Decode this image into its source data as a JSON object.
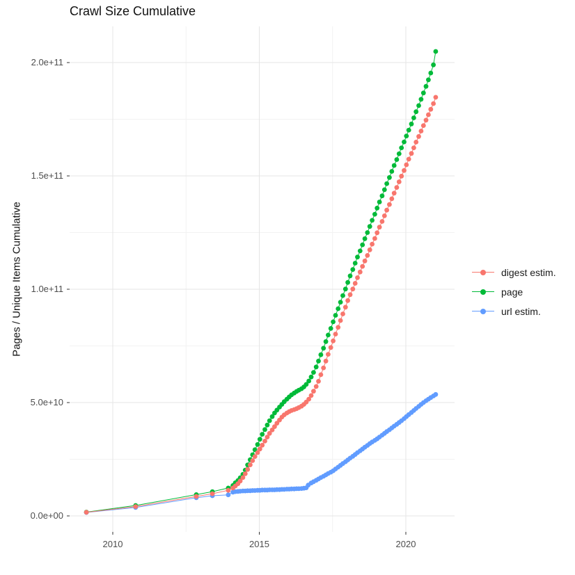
{
  "chart_data": {
    "type": "scatter",
    "title": "Crawl Size Cumulative",
    "xlabel": "",
    "ylabel": "Pages / Unique Items Cumulative",
    "unit_note": "values are cumulative counts; stored numbers are in billions (1e9)",
    "legend_position": "right",
    "grid": true,
    "x_axis": {
      "ticks": [
        {
          "label": "2010",
          "year": 2010
        },
        {
          "label": "2015",
          "year": 2015
        },
        {
          "label": "2020",
          "year": 2020
        }
      ],
      "minor_years": [
        2012.5,
        2017.5
      ],
      "range_years": [
        2008.53,
        2021.66
      ]
    },
    "y_axis": {
      "ticks": [
        {
          "label": "0.0e+00",
          "value": 0
        },
        {
          "label": "5.0e+10",
          "value": 50
        },
        {
          "label": "1.0e+11",
          "value": 100
        },
        {
          "label": "1.5e+11",
          "value": 150
        },
        {
          "label": "2.0e+11",
          "value": 200
        }
      ],
      "minor_values": [
        25,
        75,
        125,
        175
      ],
      "range_billions": [
        -7,
        216
      ]
    },
    "series": [
      {
        "name": "digest estim.",
        "color": "#F8766D",
        "points": [
          [
            2009.1,
            1.6
          ],
          [
            2010.78,
            4.1
          ],
          [
            2012.85,
            8.6
          ],
          [
            2013.4,
            9.8
          ],
          [
            2013.94,
            11.3
          ],
          [
            2014.1,
            12.3
          ],
          [
            2014.18,
            13.2
          ],
          [
            2014.27,
            14.2
          ],
          [
            2014.35,
            15.4
          ],
          [
            2014.44,
            16.9
          ],
          [
            2014.52,
            18.6
          ],
          [
            2014.6,
            20.5
          ],
          [
            2014.69,
            22.5
          ],
          [
            2014.77,
            24.4
          ],
          [
            2014.85,
            26.2
          ],
          [
            2014.94,
            27.9
          ],
          [
            2015.02,
            29.5
          ],
          [
            2015.1,
            31.2
          ],
          [
            2015.19,
            33.0
          ],
          [
            2015.27,
            34.8
          ],
          [
            2015.35,
            36.4
          ],
          [
            2015.44,
            37.9
          ],
          [
            2015.52,
            39.4
          ],
          [
            2015.6,
            40.9
          ],
          [
            2015.69,
            42.3
          ],
          [
            2015.77,
            43.6
          ],
          [
            2015.85,
            44.6
          ],
          [
            2015.94,
            45.4
          ],
          [
            2016.02,
            46.0
          ],
          [
            2016.1,
            46.5
          ],
          [
            2016.19,
            46.9
          ],
          [
            2016.27,
            47.3
          ],
          [
            2016.35,
            47.8
          ],
          [
            2016.44,
            48.4
          ],
          [
            2016.52,
            49.2
          ],
          [
            2016.6,
            50.2
          ],
          [
            2016.69,
            51.5
          ],
          [
            2016.77,
            53.1
          ],
          [
            2016.85,
            55.0
          ],
          [
            2016.94,
            57.1
          ],
          [
            2017.02,
            59.4
          ],
          [
            2017.1,
            62.3
          ],
          [
            2017.19,
            65.3
          ],
          [
            2017.27,
            68.3
          ],
          [
            2017.35,
            71.3
          ],
          [
            2017.44,
            74.3
          ],
          [
            2017.52,
            77.2
          ],
          [
            2017.6,
            80.2
          ],
          [
            2017.69,
            83.2
          ],
          [
            2017.77,
            86.2
          ],
          [
            2017.85,
            89.1
          ],
          [
            2017.94,
            92.1
          ],
          [
            2018.02,
            95.0
          ],
          [
            2018.1,
            97.6
          ],
          [
            2018.19,
            100.1
          ],
          [
            2018.27,
            102.6
          ],
          [
            2018.35,
            105.1
          ],
          [
            2018.44,
            107.6
          ],
          [
            2018.52,
            110.1
          ],
          [
            2018.6,
            112.5
          ],
          [
            2018.69,
            114.9
          ],
          [
            2018.77,
            117.4
          ],
          [
            2018.85,
            119.9
          ],
          [
            2018.94,
            122.4
          ],
          [
            2019.02,
            124.9
          ],
          [
            2019.1,
            127.4
          ],
          [
            2019.19,
            129.9
          ],
          [
            2019.27,
            132.4
          ],
          [
            2019.35,
            134.9
          ],
          [
            2019.44,
            137.4
          ],
          [
            2019.52,
            139.9
          ],
          [
            2019.6,
            142.4
          ],
          [
            2019.69,
            144.9
          ],
          [
            2019.77,
            147.4
          ],
          [
            2019.85,
            149.9
          ],
          [
            2019.94,
            152.4
          ],
          [
            2020.02,
            154.9
          ],
          [
            2020.1,
            157.4
          ],
          [
            2020.19,
            159.9
          ],
          [
            2020.27,
            162.4
          ],
          [
            2020.35,
            164.9
          ],
          [
            2020.44,
            167.4
          ],
          [
            2020.52,
            169.8
          ],
          [
            2020.6,
            172.2
          ],
          [
            2020.69,
            174.6
          ],
          [
            2020.77,
            177.0
          ],
          [
            2020.85,
            179.4
          ],
          [
            2020.94,
            181.9
          ],
          [
            2021.02,
            184.7
          ]
        ]
      },
      {
        "name": "page",
        "color": "#00BA38",
        "points": [
          [
            2009.1,
            1.7
          ],
          [
            2010.78,
            4.6
          ],
          [
            2012.85,
            9.4
          ],
          [
            2013.4,
            10.7
          ],
          [
            2013.94,
            12.3
          ],
          [
            2014.1,
            13.4
          ],
          [
            2014.18,
            14.6
          ],
          [
            2014.27,
            15.6
          ],
          [
            2014.35,
            16.8
          ],
          [
            2014.44,
            18.3
          ],
          [
            2014.52,
            20.2
          ],
          [
            2014.6,
            22.5
          ],
          [
            2014.69,
            24.8
          ],
          [
            2014.77,
            27.0
          ],
          [
            2014.85,
            29.2
          ],
          [
            2014.94,
            31.5
          ],
          [
            2015.02,
            33.8
          ],
          [
            2015.1,
            36.0
          ],
          [
            2015.19,
            38.1
          ],
          [
            2015.27,
            40.1
          ],
          [
            2015.35,
            42.0
          ],
          [
            2015.44,
            43.8
          ],
          [
            2015.52,
            45.4
          ],
          [
            2015.6,
            46.7
          ],
          [
            2015.69,
            48.0
          ],
          [
            2015.77,
            49.2
          ],
          [
            2015.85,
            50.4
          ],
          [
            2015.94,
            51.5
          ],
          [
            2016.02,
            52.5
          ],
          [
            2016.1,
            53.4
          ],
          [
            2016.19,
            54.2
          ],
          [
            2016.27,
            54.9
          ],
          [
            2016.35,
            55.5
          ],
          [
            2016.44,
            56.1
          ],
          [
            2016.52,
            56.9
          ],
          [
            2016.6,
            58.0
          ],
          [
            2016.69,
            59.5
          ],
          [
            2016.77,
            61.3
          ],
          [
            2016.85,
            63.3
          ],
          [
            2016.94,
            65.7
          ],
          [
            2017.02,
            68.3
          ],
          [
            2017.1,
            71.1
          ],
          [
            2017.19,
            74.0
          ],
          [
            2017.27,
            76.9
          ],
          [
            2017.35,
            79.8
          ],
          [
            2017.44,
            82.7
          ],
          [
            2017.52,
            85.6
          ],
          [
            2017.6,
            88.5
          ],
          [
            2017.69,
            91.4
          ],
          [
            2017.77,
            94.3
          ],
          [
            2017.85,
            97.2
          ],
          [
            2017.94,
            100.1
          ],
          [
            2018.02,
            103.0
          ],
          [
            2018.1,
            105.9
          ],
          [
            2018.19,
            108.7
          ],
          [
            2018.27,
            111.5
          ],
          [
            2018.35,
            114.2
          ],
          [
            2018.44,
            116.9
          ],
          [
            2018.52,
            119.6
          ],
          [
            2018.6,
            122.3
          ],
          [
            2018.69,
            125.0
          ],
          [
            2018.77,
            127.7
          ],
          [
            2018.85,
            130.4
          ],
          [
            2018.94,
            133.1
          ],
          [
            2019.02,
            135.8
          ],
          [
            2019.1,
            138.5
          ],
          [
            2019.19,
            141.2
          ],
          [
            2019.27,
            143.9
          ],
          [
            2019.35,
            146.6
          ],
          [
            2019.44,
            149.3
          ],
          [
            2019.52,
            152.0
          ],
          [
            2019.6,
            154.6
          ],
          [
            2019.69,
            157.2
          ],
          [
            2019.77,
            159.8
          ],
          [
            2019.85,
            162.4
          ],
          [
            2019.94,
            165.0
          ],
          [
            2020.02,
            167.6
          ],
          [
            2020.1,
            170.2
          ],
          [
            2020.19,
            172.9
          ],
          [
            2020.27,
            175.6
          ],
          [
            2020.35,
            178.3
          ],
          [
            2020.44,
            181.0
          ],
          [
            2020.52,
            183.8
          ],
          [
            2020.6,
            186.6
          ],
          [
            2020.69,
            189.5
          ],
          [
            2020.77,
            192.4
          ],
          [
            2020.85,
            195.4
          ],
          [
            2020.94,
            199.0
          ],
          [
            2021.02,
            204.9
          ]
        ]
      },
      {
        "name": "url estim.",
        "color": "#619CFF",
        "points": [
          [
            2009.1,
            1.5
          ],
          [
            2010.78,
            3.7
          ],
          [
            2012.85,
            8.0
          ],
          [
            2013.4,
            8.9
          ],
          [
            2013.94,
            9.3
          ],
          [
            2014.1,
            10.5
          ],
          [
            2014.18,
            10.7
          ],
          [
            2014.27,
            10.8
          ],
          [
            2014.35,
            10.9
          ],
          [
            2014.44,
            11.0
          ],
          [
            2014.52,
            11.0
          ],
          [
            2014.6,
            11.1
          ],
          [
            2014.69,
            11.1
          ],
          [
            2014.77,
            11.2
          ],
          [
            2014.85,
            11.2
          ],
          [
            2014.94,
            11.3
          ],
          [
            2015.02,
            11.3
          ],
          [
            2015.1,
            11.4
          ],
          [
            2015.19,
            11.4
          ],
          [
            2015.27,
            11.4
          ],
          [
            2015.35,
            11.5
          ],
          [
            2015.44,
            11.5
          ],
          [
            2015.52,
            11.5
          ],
          [
            2015.6,
            11.6
          ],
          [
            2015.69,
            11.6
          ],
          [
            2015.77,
            11.7
          ],
          [
            2015.85,
            11.7
          ],
          [
            2015.94,
            11.8
          ],
          [
            2016.02,
            11.8
          ],
          [
            2016.1,
            11.9
          ],
          [
            2016.19,
            11.9
          ],
          [
            2016.27,
            12.0
          ],
          [
            2016.35,
            12.0
          ],
          [
            2016.44,
            12.1
          ],
          [
            2016.52,
            12.2
          ],
          [
            2016.6,
            12.4
          ],
          [
            2016.67,
            13.6
          ],
          [
            2016.77,
            14.5
          ],
          [
            2016.85,
            15.1
          ],
          [
            2016.94,
            15.7
          ],
          [
            2017.02,
            16.3
          ],
          [
            2017.1,
            16.9
          ],
          [
            2017.19,
            17.5
          ],
          [
            2017.27,
            18.1
          ],
          [
            2017.35,
            18.7
          ],
          [
            2017.44,
            19.3
          ],
          [
            2017.52,
            19.9
          ],
          [
            2017.6,
            20.7
          ],
          [
            2017.69,
            21.5
          ],
          [
            2017.77,
            22.3
          ],
          [
            2017.85,
            23.1
          ],
          [
            2017.94,
            23.9
          ],
          [
            2018.02,
            24.7
          ],
          [
            2018.1,
            25.5
          ],
          [
            2018.19,
            26.3
          ],
          [
            2018.27,
            27.1
          ],
          [
            2018.35,
            27.9
          ],
          [
            2018.44,
            28.7
          ],
          [
            2018.52,
            29.5
          ],
          [
            2018.6,
            30.3
          ],
          [
            2018.69,
            31.1
          ],
          [
            2018.77,
            31.9
          ],
          [
            2018.85,
            32.6
          ],
          [
            2018.94,
            33.3
          ],
          [
            2019.02,
            34.0
          ],
          [
            2019.1,
            34.8
          ],
          [
            2019.19,
            35.6
          ],
          [
            2019.27,
            36.4
          ],
          [
            2019.35,
            37.2
          ],
          [
            2019.44,
            38.0
          ],
          [
            2019.52,
            38.8
          ],
          [
            2019.6,
            39.6
          ],
          [
            2019.69,
            40.4
          ],
          [
            2019.77,
            41.2
          ],
          [
            2019.85,
            42.0
          ],
          [
            2019.94,
            42.9
          ],
          [
            2020.02,
            43.8
          ],
          [
            2020.1,
            44.7
          ],
          [
            2020.19,
            45.6
          ],
          [
            2020.27,
            46.5
          ],
          [
            2020.35,
            47.4
          ],
          [
            2020.44,
            48.3
          ],
          [
            2020.52,
            49.2
          ],
          [
            2020.6,
            50.0
          ],
          [
            2020.69,
            50.8
          ],
          [
            2020.77,
            51.5
          ],
          [
            2020.85,
            52.2
          ],
          [
            2020.94,
            52.9
          ],
          [
            2021.02,
            53.6
          ]
        ]
      }
    ],
    "style": {
      "major_grid_color": "#E5E5E5",
      "minor_grid_color": "#F2F2F2",
      "tick_color": "#333333",
      "tick_label_color": "#4d4d4d",
      "point_radius": 3.4
    }
  }
}
